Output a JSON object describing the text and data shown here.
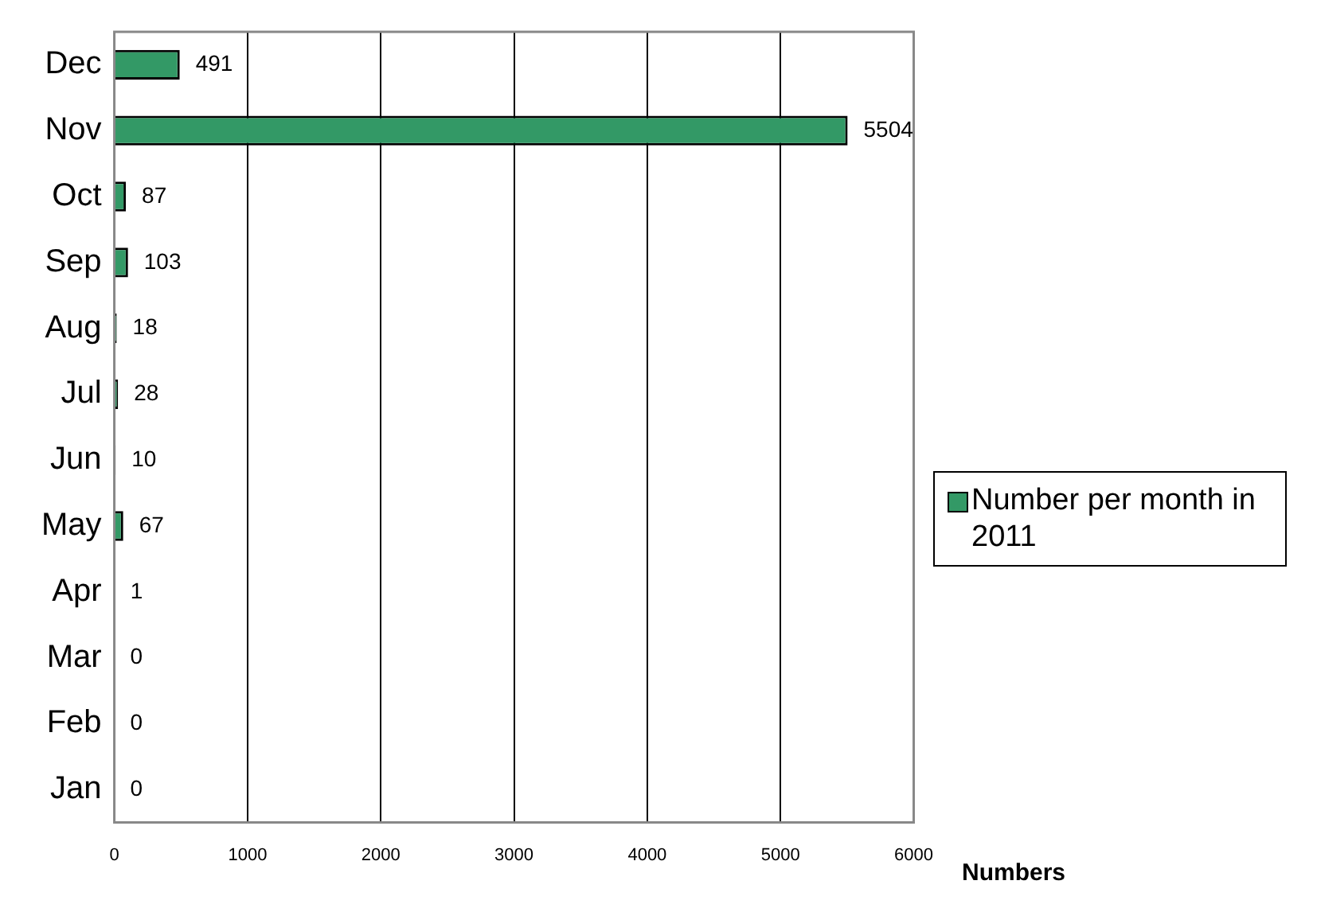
{
  "chart_data": {
    "type": "bar",
    "orientation": "horizontal",
    "categories": [
      "Dec",
      "Nov",
      "Oct",
      "Sep",
      "Aug",
      "Jul",
      "Jun",
      "May",
      "Apr",
      "Mar",
      "Feb",
      "Jan"
    ],
    "series": [
      {
        "name": "Number per month in 2011",
        "color": "#339966",
        "values": [
          491,
          5504,
          87,
          103,
          18,
          28,
          10,
          67,
          1,
          0,
          0,
          0
        ]
      }
    ],
    "xlabel": "Numbers",
    "xlim": [
      0,
      6000
    ],
    "xticks": [
      0,
      1000,
      2000,
      3000,
      4000,
      5000,
      6000
    ],
    "grid": "x",
    "legend": "right",
    "data_labels": true
  }
}
